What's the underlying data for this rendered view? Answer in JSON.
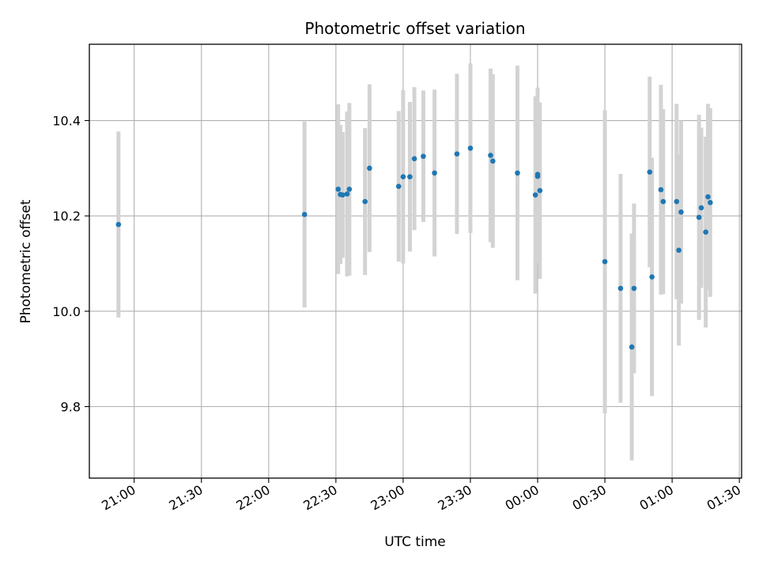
{
  "chart_data": {
    "type": "scatter",
    "title": "Photometric offset variation",
    "xlabel": "UTC time",
    "ylabel": "Photometric offset",
    "grid": true,
    "x_ticks": [
      "20:00",
      "20:30",
      "21:00",
      "21:30",
      "22:00",
      "22:30",
      "23:00",
      "23:30",
      "00:00",
      "00:30",
      "01:00",
      "01:30"
    ],
    "x_tick_labels": [
      "21:00",
      "21:30",
      "22:00",
      "22:30",
      "23:00",
      "23:30",
      "00:00",
      "00:30",
      "01:00",
      "01:30"
    ],
    "x_range": [
      "20:40",
      "25:31"
    ],
    "y_ticks": [
      9.8,
      10.0,
      10.2,
      10.4
    ],
    "y_tick_labels": [
      "9.8",
      "10.0",
      "10.2",
      "10.4"
    ],
    "ylim": [
      9.65,
      10.56
    ],
    "colors": {
      "point": "#1f77b4",
      "errorbar": "#d3d3d3",
      "grid": "#b0b0b0"
    },
    "series": [
      {
        "points": [
          {
            "x": "20:53",
            "y": 10.182,
            "err": 0.195
          },
          {
            "x": "22:16",
            "y": 10.203,
            "err": 0.195
          },
          {
            "x": "22:31",
            "y": 10.256,
            "err": 0.178
          },
          {
            "x": "22:32",
            "y": 10.245,
            "err": 0.146
          },
          {
            "x": "22:33",
            "y": 10.244,
            "err": 0.132
          },
          {
            "x": "22:35",
            "y": 10.246,
            "err": 0.173
          },
          {
            "x": "22:36",
            "y": 10.256,
            "err": 0.181
          },
          {
            "x": "22:43",
            "y": 10.23,
            "err": 0.154
          },
          {
            "x": "22:45",
            "y": 10.3,
            "err": 0.176
          },
          {
            "x": "22:58",
            "y": 10.262,
            "err": 0.158
          },
          {
            "x": "23:00",
            "y": 10.282,
            "err": 0.182
          },
          {
            "x": "23:03",
            "y": 10.282,
            "err": 0.157
          },
          {
            "x": "23:05",
            "y": 10.32,
            "err": 0.15
          },
          {
            "x": "23:09",
            "y": 10.325,
            "err": 0.138
          },
          {
            "x": "23:14",
            "y": 10.29,
            "err": 0.175
          },
          {
            "x": "23:24",
            "y": 10.33,
            "err": 0.168
          },
          {
            "x": "23:30",
            "y": 10.342,
            "err": 0.178
          },
          {
            "x": "23:39",
            "y": 10.327,
            "err": 0.182
          },
          {
            "x": "23:40",
            "y": 10.315,
            "err": 0.182
          },
          {
            "x": "23:51",
            "y": 10.29,
            "err": 0.225
          },
          {
            "x": "23:59",
            "y": 10.244,
            "err": 0.207
          },
          {
            "x": "24:00",
            "y": 10.283,
            "err": 0.182
          },
          {
            "x": "24:00",
            "y": 10.287,
            "err": 0.182
          },
          {
            "x": "24:01",
            "y": 10.253,
            "err": 0.185
          },
          {
            "x": "24:30",
            "y": 10.104,
            "err": 0.318
          },
          {
            "x": "24:37",
            "y": 10.048,
            "err": 0.24
          },
          {
            "x": "24:42",
            "y": 9.925,
            "err": 0.238
          },
          {
            "x": "24:43",
            "y": 10.048,
            "err": 0.178
          },
          {
            "x": "24:50",
            "y": 10.292,
            "err": 0.2
          },
          {
            "x": "24:51",
            "y": 10.072,
            "err": 0.25
          },
          {
            "x": "24:55",
            "y": 10.255,
            "err": 0.22
          },
          {
            "x": "24:56",
            "y": 10.23,
            "err": 0.194
          },
          {
            "x": "25:02",
            "y": 10.23,
            "err": 0.205
          },
          {
            "x": "25:03",
            "y": 10.128,
            "err": 0.2
          },
          {
            "x": "25:04",
            "y": 10.208,
            "err": 0.192
          },
          {
            "x": "25:12",
            "y": 10.197,
            "err": 0.215
          },
          {
            "x": "25:13",
            "y": 10.217,
            "err": 0.168
          },
          {
            "x": "25:15",
            "y": 10.166,
            "err": 0.2
          },
          {
            "x": "25:16",
            "y": 10.24,
            "err": 0.195
          },
          {
            "x": "25:17",
            "y": 10.228,
            "err": 0.198
          }
        ]
      }
    ]
  }
}
